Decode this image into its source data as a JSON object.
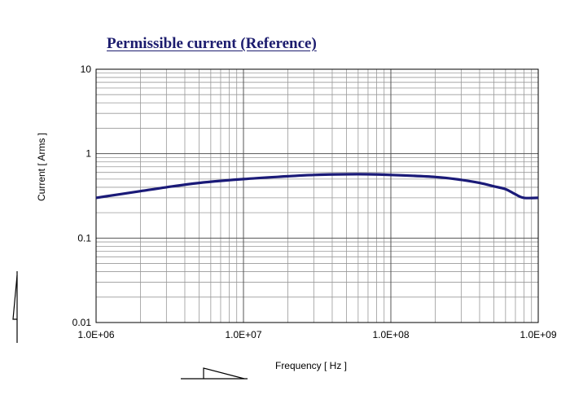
{
  "chart_data": {
    "type": "line",
    "title": "Permissible current (Reference)",
    "xlabel": "Frequency  [ Hz ]",
    "ylabel": "Current  [ Arms ]",
    "x_scale": "log",
    "y_scale": "log",
    "xlim": [
      1000000,
      1000000000
    ],
    "ylim": [
      0.01,
      10
    ],
    "grid": true,
    "x_ticks": [
      {
        "value": 1000000,
        "label": "1.0E+06"
      },
      {
        "value": 10000000,
        "label": "1.0E+07"
      },
      {
        "value": 100000000,
        "label": "1.0E+08"
      },
      {
        "value": 1000000000,
        "label": "1.0E+09"
      }
    ],
    "y_ticks": [
      {
        "value": 10,
        "label": "10"
      },
      {
        "value": 1,
        "label": "1"
      },
      {
        "value": 0.1,
        "label": "0.1"
      },
      {
        "value": 0.01,
        "label": "0.01"
      }
    ],
    "series": [
      {
        "color": "#1a1a78",
        "x": [
          1000000,
          2000000,
          3000000,
          5000000,
          10000000,
          20000000,
          30000000,
          50000000,
          70000000,
          100000000,
          200000000,
          300000000,
          400000000,
          500000000,
          600000000,
          700000000,
          800000000,
          1000000000
        ],
        "y": [
          0.3,
          0.36,
          0.4,
          0.45,
          0.5,
          0.54,
          0.56,
          0.57,
          0.57,
          0.56,
          0.53,
          0.49,
          0.45,
          0.41,
          0.38,
          0.33,
          0.3,
          0.3
        ]
      }
    ]
  }
}
